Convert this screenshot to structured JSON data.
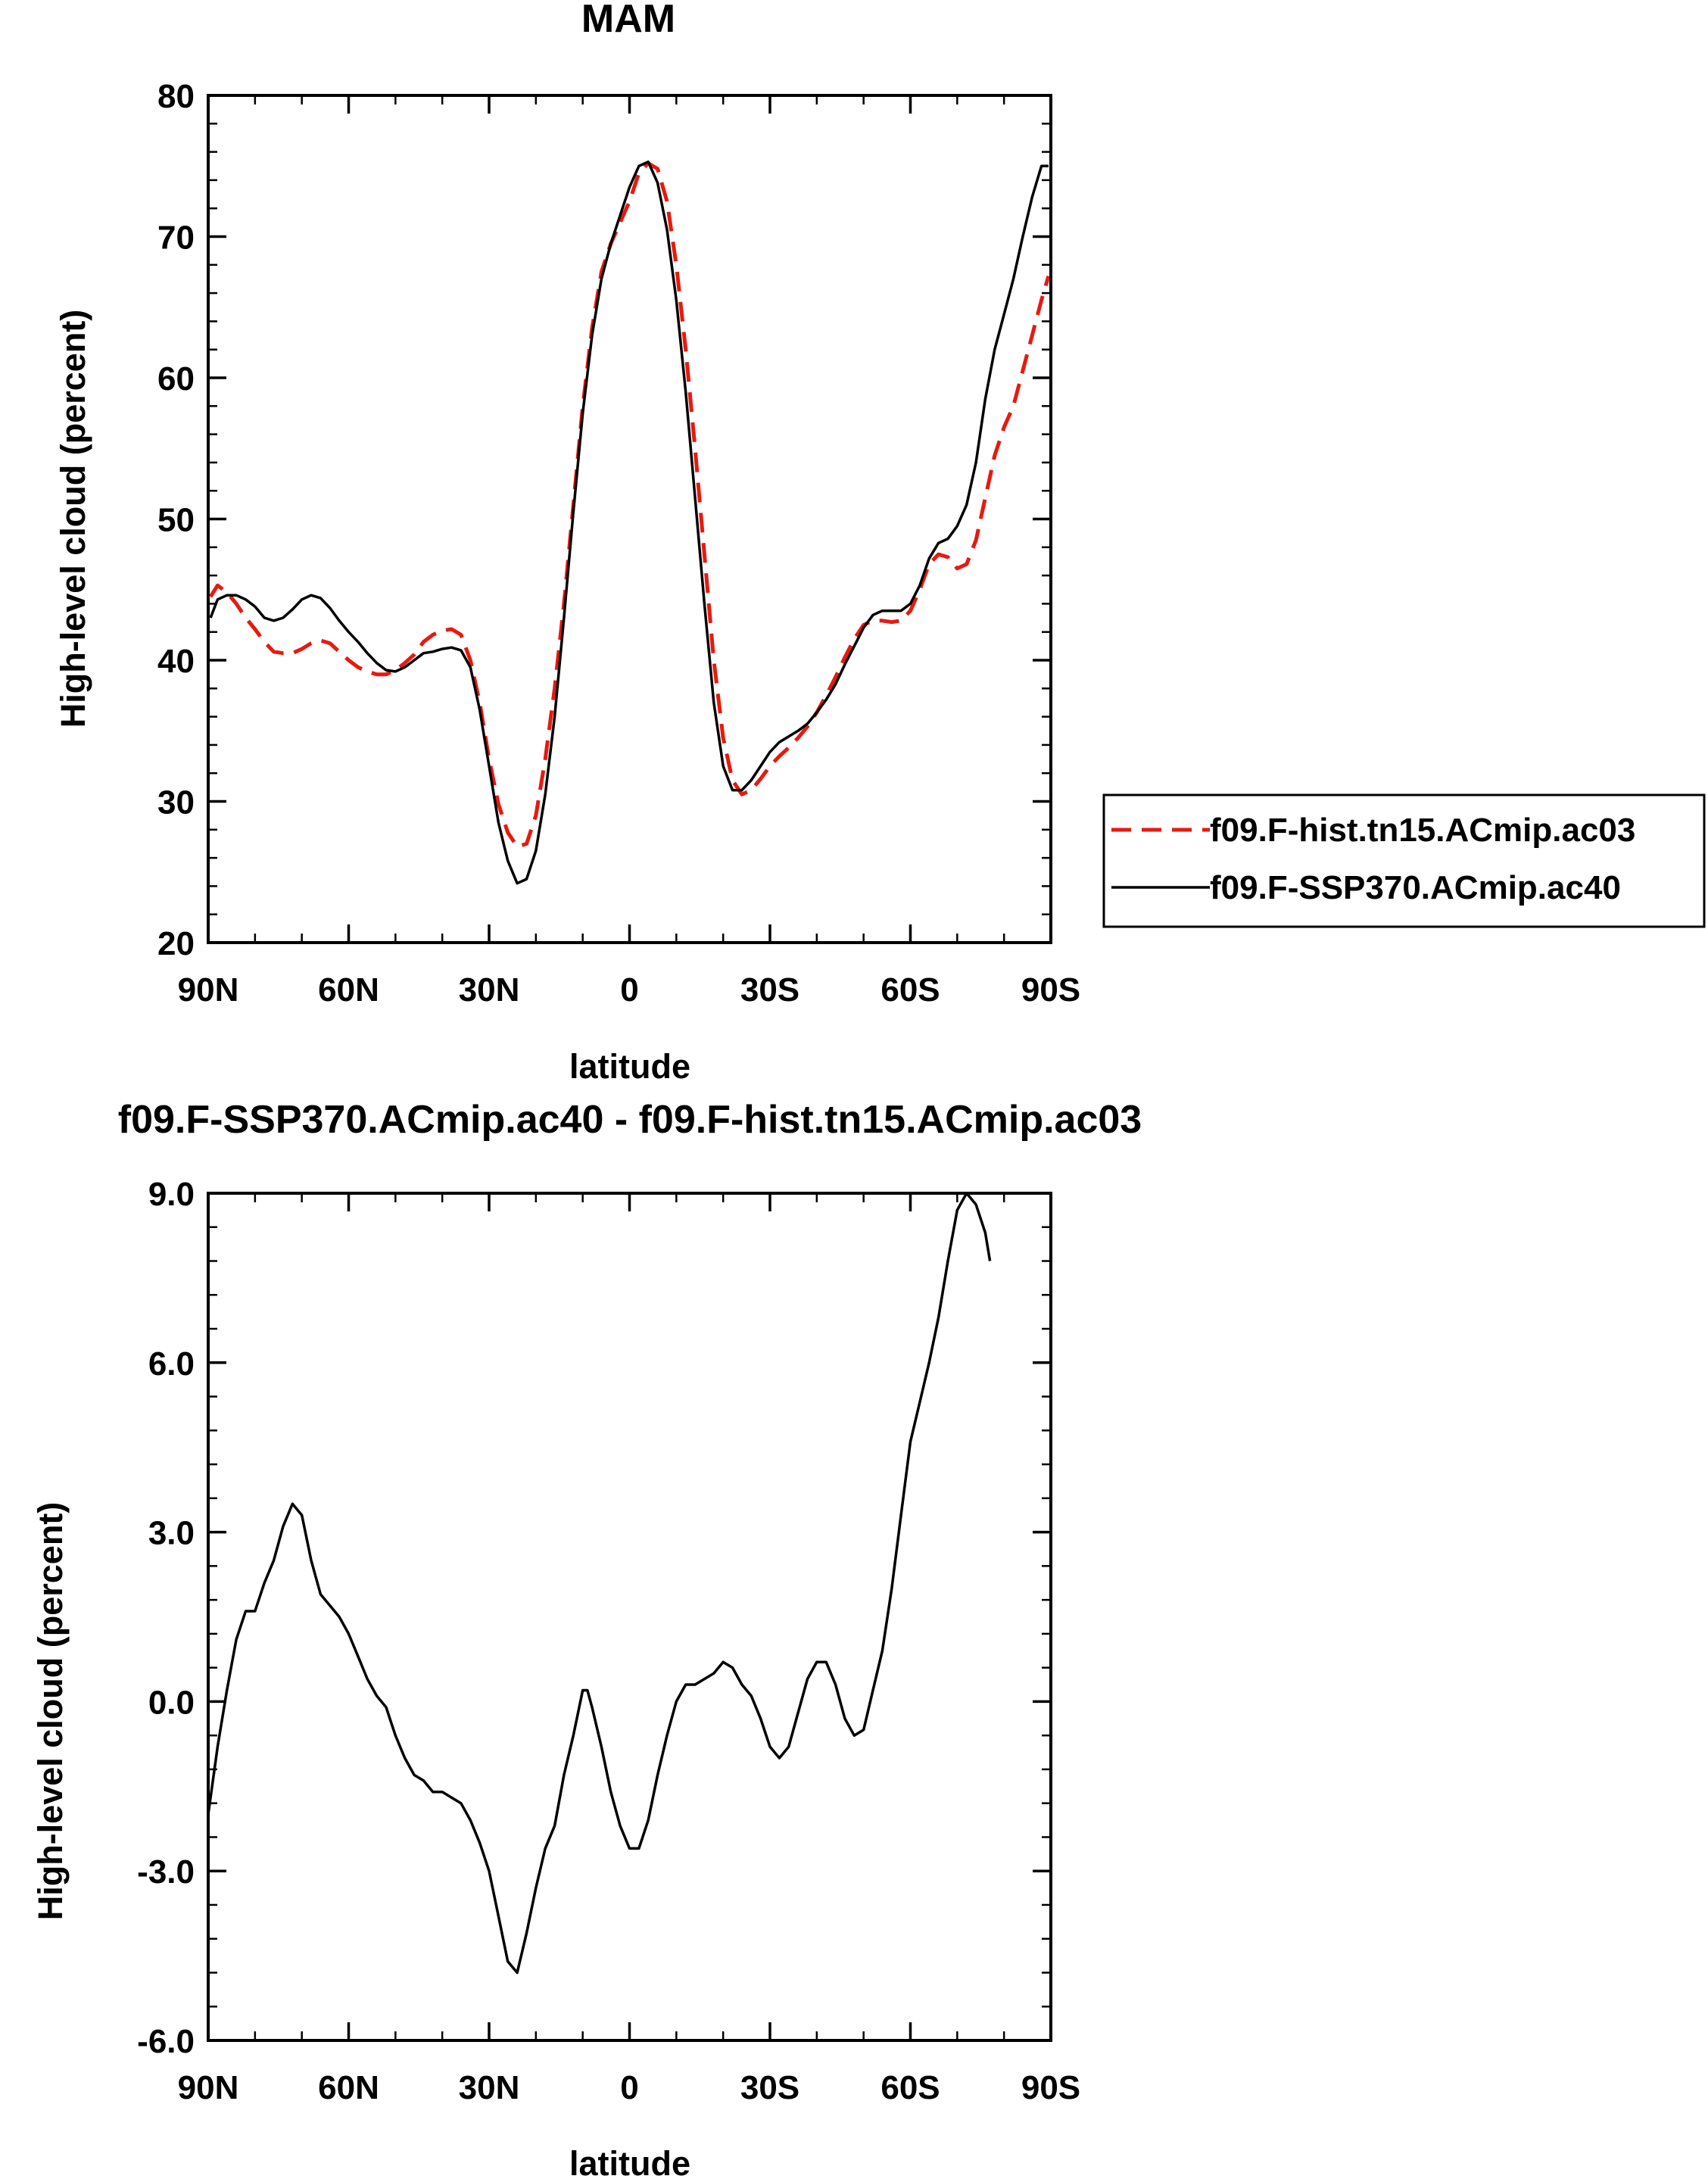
{
  "chart_data": [
    {
      "type": "line",
      "title": "MAM",
      "xlabel": "latitude",
      "ylabel": "High-level cloud (percent)",
      "xlim": [
        90,
        -90
      ],
      "ylim": [
        20,
        80
      ],
      "yticks": [
        20,
        30,
        40,
        50,
        60,
        70,
        80
      ],
      "yticklabels": [
        "20",
        "30",
        "40",
        "50",
        "60",
        "70",
        "80"
      ],
      "xticks": [
        90,
        60,
        30,
        0,
        -30,
        -60,
        -90
      ],
      "xticklabels": [
        "90N",
        "60N",
        "30N",
        "0",
        "30S",
        "60S",
        "90S"
      ],
      "legend": {
        "position": "right",
        "entries": [
          "f09.F-hist.tn15.ACmip.ac03",
          "f09.F-SSP370.ACmip.ac40"
        ]
      },
      "series": [
        {
          "name": "f09.F-hist.tn15.ACmip.ac03",
          "color": "#e8190f",
          "dash": "dashed",
          "points": [
            [
              89.5,
              44.5
            ],
            [
              88,
              45.3
            ],
            [
              86,
              44.8
            ],
            [
              84,
              44.0
            ],
            [
              82,
              43.0
            ],
            [
              80,
              42.2
            ],
            [
              78,
              41.3
            ],
            [
              76,
              40.6
            ],
            [
              74,
              40.5
            ],
            [
              72,
              40.5
            ],
            [
              70,
              40.8
            ],
            [
              68,
              41.2
            ],
            [
              66,
              41.4
            ],
            [
              64,
              41.2
            ],
            [
              62,
              40.6
            ],
            [
              60,
              40.0
            ],
            [
              58,
              39.5
            ],
            [
              56,
              39.2
            ],
            [
              54,
              39.0
            ],
            [
              52,
              39.0
            ],
            [
              50,
              39.3
            ],
            [
              48,
              39.8
            ],
            [
              46,
              40.4
            ],
            [
              44,
              41.3
            ],
            [
              42,
              41.8
            ],
            [
              40,
              42.1
            ],
            [
              38,
              42.2
            ],
            [
              36,
              41.8
            ],
            [
              34,
              40.0
            ],
            [
              32,
              37.0
            ],
            [
              30,
              33.0
            ],
            [
              28,
              29.8
            ],
            [
              26,
              27.8
            ],
            [
              24,
              26.8
            ],
            [
              22,
              27.0
            ],
            [
              20,
              29.0
            ],
            [
              18,
              33.0
            ],
            [
              16,
              38.0
            ],
            [
              14,
              44.0
            ],
            [
              12,
              51.0
            ],
            [
              10,
              58.0
            ],
            [
              8,
              63.5
            ],
            [
              6,
              67.5
            ],
            [
              4,
              69.5
            ],
            [
              2,
              71.0
            ],
            [
              0,
              72.5
            ],
            [
              -2,
              74.5
            ],
            [
              -4,
              75.2
            ],
            [
              -6,
              74.8
            ],
            [
              -8,
              72.5
            ],
            [
              -10,
              68.0
            ],
            [
              -12,
              62.0
            ],
            [
              -14,
              55.0
            ],
            [
              -16,
              47.5
            ],
            [
              -18,
              40.0
            ],
            [
              -20,
              34.5
            ],
            [
              -22,
              31.5
            ],
            [
              -24,
              30.5
            ],
            [
              -26,
              30.8
            ],
            [
              -28,
              31.6
            ],
            [
              -30,
              32.5
            ],
            [
              -32,
              33.2
            ],
            [
              -34,
              33.8
            ],
            [
              -36,
              34.5
            ],
            [
              -38,
              35.3
            ],
            [
              -40,
              36.3
            ],
            [
              -42,
              37.5
            ],
            [
              -44,
              38.8
            ],
            [
              -46,
              40.2
            ],
            [
              -48,
              41.5
            ],
            [
              -50,
              42.5
            ],
            [
              -52,
              42.8
            ],
            [
              -54,
              42.8
            ],
            [
              -56,
              42.7
            ],
            [
              -58,
              42.8
            ],
            [
              -60,
              43.5
            ],
            [
              -62,
              45.0
            ],
            [
              -64,
              46.8
            ],
            [
              -66,
              47.5
            ],
            [
              -68,
              47.3
            ],
            [
              -70,
              46.5
            ],
            [
              -72,
              46.8
            ],
            [
              -74,
              48.5
            ],
            [
              -76,
              51.5
            ],
            [
              -78,
              54.5
            ],
            [
              -80,
              56.5
            ],
            [
              -82,
              58.0
            ],
            [
              -84,
              60.5
            ],
            [
              -86,
              63.0
            ],
            [
              -88,
              65.5
            ],
            [
              -89.5,
              67.2
            ]
          ]
        },
        {
          "name": "f09.F-SSP370.ACmip.ac40",
          "color": "#000000",
          "dash": "solid",
          "points": [
            [
              89.5,
              43.0
            ],
            [
              88,
              44.3
            ],
            [
              86,
              44.6
            ],
            [
              84,
              44.6
            ],
            [
              82,
              44.3
            ],
            [
              80,
              43.8
            ],
            [
              78,
              43.0
            ],
            [
              76,
              42.8
            ],
            [
              74,
              43.0
            ],
            [
              72,
              43.6
            ],
            [
              70,
              44.3
            ],
            [
              68,
              44.6
            ],
            [
              66,
              44.4
            ],
            [
              64,
              43.7
            ],
            [
              62,
              42.8
            ],
            [
              60,
              42.0
            ],
            [
              58,
              41.3
            ],
            [
              56,
              40.5
            ],
            [
              54,
              39.8
            ],
            [
              52,
              39.3
            ],
            [
              50,
              39.2
            ],
            [
              48,
              39.5
            ],
            [
              46,
              40.0
            ],
            [
              44,
              40.5
            ],
            [
              42,
              40.6
            ],
            [
              40,
              40.8
            ],
            [
              38,
              40.9
            ],
            [
              36,
              40.7
            ],
            [
              34,
              39.5
            ],
            [
              32,
              36.5
            ],
            [
              30,
              32.5
            ],
            [
              28,
              28.5
            ],
            [
              26,
              25.8
            ],
            [
              24,
              24.2
            ],
            [
              22,
              24.5
            ],
            [
              20,
              26.5
            ],
            [
              18,
              30.5
            ],
            [
              16,
              36.0
            ],
            [
              14,
              43.0
            ],
            [
              12,
              50.5
            ],
            [
              10,
              57.5
            ],
            [
              8,
              63.0
            ],
            [
              6,
              67.0
            ],
            [
              4,
              69.5
            ],
            [
              2,
              71.5
            ],
            [
              0,
              73.5
            ],
            [
              -2,
              75.0
            ],
            [
              -4,
              75.3
            ],
            [
              -6,
              73.8
            ],
            [
              -8,
              70.5
            ],
            [
              -10,
              65.5
            ],
            [
              -12,
              59.0
            ],
            [
              -14,
              51.5
            ],
            [
              -16,
              44.0
            ],
            [
              -18,
              37.0
            ],
            [
              -20,
              32.5
            ],
            [
              -22,
              30.8
            ],
            [
              -24,
              30.8
            ],
            [
              -26,
              31.5
            ],
            [
              -28,
              32.5
            ],
            [
              -30,
              33.5
            ],
            [
              -32,
              34.2
            ],
            [
              -34,
              34.6
            ],
            [
              -36,
              35.0
            ],
            [
              -38,
              35.5
            ],
            [
              -40,
              36.3
            ],
            [
              -42,
              37.2
            ],
            [
              -44,
              38.3
            ],
            [
              -46,
              39.7
            ],
            [
              -48,
              41.0
            ],
            [
              -50,
              42.3
            ],
            [
              -52,
              43.2
            ],
            [
              -54,
              43.5
            ],
            [
              -56,
              43.5
            ],
            [
              -58,
              43.5
            ],
            [
              -60,
              44.0
            ],
            [
              -62,
              45.3
            ],
            [
              -64,
              47.2
            ],
            [
              -66,
              48.3
            ],
            [
              -68,
              48.6
            ],
            [
              -70,
              49.5
            ],
            [
              -72,
              51.0
            ],
            [
              -74,
              54.0
            ],
            [
              -76,
              58.5
            ],
            [
              -78,
              62.0
            ],
            [
              -80,
              64.5
            ],
            [
              -82,
              67.0
            ],
            [
              -84,
              70.0
            ],
            [
              -86,
              72.8
            ],
            [
              -88,
              75.0
            ],
            [
              -89.5,
              75.0
            ]
          ]
        }
      ]
    },
    {
      "type": "line",
      "title": "f09.F-SSP370.ACmip.ac40 - f09.F-hist.tn15.ACmip.ac03",
      "xlabel": "latitude",
      "ylabel": "High-level cloud (percent)",
      "xlim": [
        90,
        -90
      ],
      "ylim": [
        -6.0,
        9.0
      ],
      "yticks": [
        -6,
        -3,
        0,
        3,
        6,
        9
      ],
      "yticklabels": [
        "-6.0",
        "-3.0",
        "0.0",
        "3.0",
        "6.0",
        "9.0"
      ],
      "xticks": [
        90,
        60,
        30,
        0,
        -30,
        -60,
        -90
      ],
      "xticklabels": [
        "90N",
        "60N",
        "30N",
        "0",
        "30S",
        "60S",
        "90S"
      ],
      "series": [
        {
          "name": "f09.F-SSP370.ACmip.ac40 - f09.F-hist.tn15.ACmip.ac03",
          "color": "#000000",
          "dash": "solid",
          "points": [
            [
              90,
              -2.0
            ],
            [
              88,
              -0.8
            ],
            [
              86,
              0.2
            ],
            [
              84,
              1.1
            ],
            [
              82,
              1.6
            ],
            [
              80,
              1.6
            ],
            [
              78,
              2.1
            ],
            [
              76,
              2.5
            ],
            [
              74,
              3.1
            ],
            [
              72,
              3.5
            ],
            [
              70,
              3.3
            ],
            [
              68,
              2.5
            ],
            [
              66,
              1.9
            ],
            [
              64,
              1.7
            ],
            [
              62,
              1.5
            ],
            [
              60,
              1.2
            ],
            [
              58,
              0.8
            ],
            [
              56,
              0.4
            ],
            [
              54,
              0.1
            ],
            [
              52,
              -0.1
            ],
            [
              50,
              -0.6
            ],
            [
              48,
              -1.0
            ],
            [
              46,
              -1.3
            ],
            [
              44,
              -1.4
            ],
            [
              42,
              -1.6
            ],
            [
              40,
              -1.6
            ],
            [
              38,
              -1.7
            ],
            [
              36,
              -1.8
            ],
            [
              34,
              -2.1
            ],
            [
              32,
              -2.5
            ],
            [
              30,
              -3.0
            ],
            [
              28,
              -3.8
            ],
            [
              26,
              -4.6
            ],
            [
              24,
              -4.8
            ],
            [
              22,
              -4.1
            ],
            [
              20,
              -3.3
            ],
            [
              18,
              -2.6
            ],
            [
              16,
              -2.2
            ],
            [
              14,
              -1.3
            ],
            [
              12,
              -0.6
            ],
            [
              10,
              0.2
            ],
            [
              9,
              0.2
            ],
            [
              8,
              -0.1
            ],
            [
              6,
              -0.8
            ],
            [
              4,
              -1.6
            ],
            [
              2,
              -2.2
            ],
            [
              0,
              -2.6
            ],
            [
              -2,
              -2.6
            ],
            [
              -4,
              -2.1
            ],
            [
              -6,
              -1.3
            ],
            [
              -8,
              -0.6
            ],
            [
              -10,
              0.0
            ],
            [
              -12,
              0.3
            ],
            [
              -14,
              0.3
            ],
            [
              -16,
              0.4
            ],
            [
              -18,
              0.5
            ],
            [
              -20,
              0.7
            ],
            [
              -22,
              0.6
            ],
            [
              -24,
              0.3
            ],
            [
              -26,
              0.1
            ],
            [
              -28,
              -0.3
            ],
            [
              -30,
              -0.8
            ],
            [
              -32,
              -1.0
            ],
            [
              -34,
              -0.8
            ],
            [
              -36,
              -0.2
            ],
            [
              -38,
              0.4
            ],
            [
              -40,
              0.7
            ],
            [
              -42,
              0.7
            ],
            [
              -44,
              0.3
            ],
            [
              -46,
              -0.3
            ],
            [
              -48,
              -0.6
            ],
            [
              -50,
              -0.5
            ],
            [
              -52,
              0.2
            ],
            [
              -54,
              0.9
            ],
            [
              -56,
              2.0
            ],
            [
              -58,
              3.3
            ],
            [
              -60,
              4.6
            ],
            [
              -62,
              5.3
            ],
            [
              -64,
              6.0
            ],
            [
              -66,
              6.8
            ],
            [
              -68,
              7.8
            ],
            [
              -70,
              8.7
            ],
            [
              -72,
              9.0
            ],
            [
              -74,
              8.8
            ],
            [
              -76,
              8.3
            ],
            [
              -77,
              7.8
            ]
          ]
        }
      ]
    }
  ]
}
